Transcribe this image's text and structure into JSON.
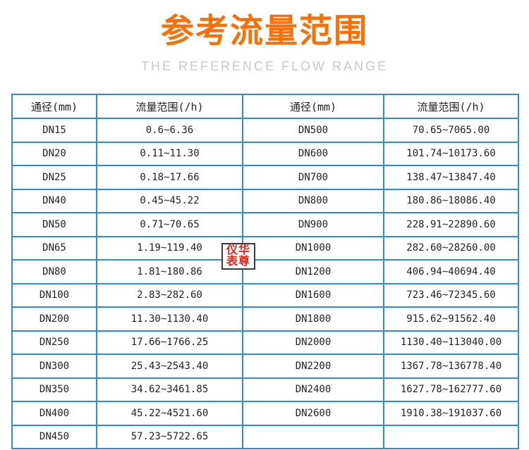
{
  "page": {
    "title": "参考流量范围",
    "subtitle": "THE REFERENCE FLOW RANGE"
  },
  "watermark": {
    "line1": "仪华",
    "line2": "表尊"
  },
  "colors": {
    "title_orange": "#f77108",
    "subtitle_gray": "#c9c9c9",
    "table_border_blue": "#2f8dcc",
    "cell_text": "#222222",
    "watermark_red": "#e4251f"
  },
  "chart_data": {
    "type": "table",
    "title": "参考流量范围",
    "subtitle": "THE REFERENCE FLOW RANGE",
    "columns": [
      "通径(mm)",
      "流量范围(/h)",
      "通径(mm)",
      "流量范围(/h)"
    ],
    "rows": [
      [
        "DN15",
        "0.6~6.36",
        "DN500",
        "70.65~7065.00"
      ],
      [
        "DN20",
        "0.11~11.30",
        "DN600",
        "101.74~10173.60"
      ],
      [
        "DN25",
        "0.18~17.66",
        "DN700",
        "138.47~13847.40"
      ],
      [
        "DN40",
        "0.45~45.22",
        "DN800",
        "180.86~18086.40"
      ],
      [
        "DN50",
        "0.71~70.65",
        "DN900",
        "228.91~22890.60"
      ],
      [
        "DN65",
        "1.19~119.40",
        "DN1000",
        "282.60~28260.00"
      ],
      [
        "DN80",
        "1.81~180.86",
        "DN1200",
        "406.94~40694.40"
      ],
      [
        "DN100",
        "2.83~282.60",
        "DN1600",
        "723.46~72345.60"
      ],
      [
        "DN200",
        "11.30~1130.40",
        "DN1800",
        "915.62~91562.40"
      ],
      [
        "DN250",
        "17.66~1766.25",
        "DN2000",
        "1130.40~113040.00"
      ],
      [
        "DN300",
        "25.43~2543.40",
        "DN2200",
        "1367.78~136778.40"
      ],
      [
        "DN350",
        "34.62~3461.85",
        "DN2400",
        "1627.78~162777.60"
      ],
      [
        "DN400",
        "45.22~4521.60",
        "DN2600",
        "1910.38~191037.60"
      ],
      [
        "DN450",
        "57.23~5722.65",
        "",
        ""
      ]
    ]
  }
}
